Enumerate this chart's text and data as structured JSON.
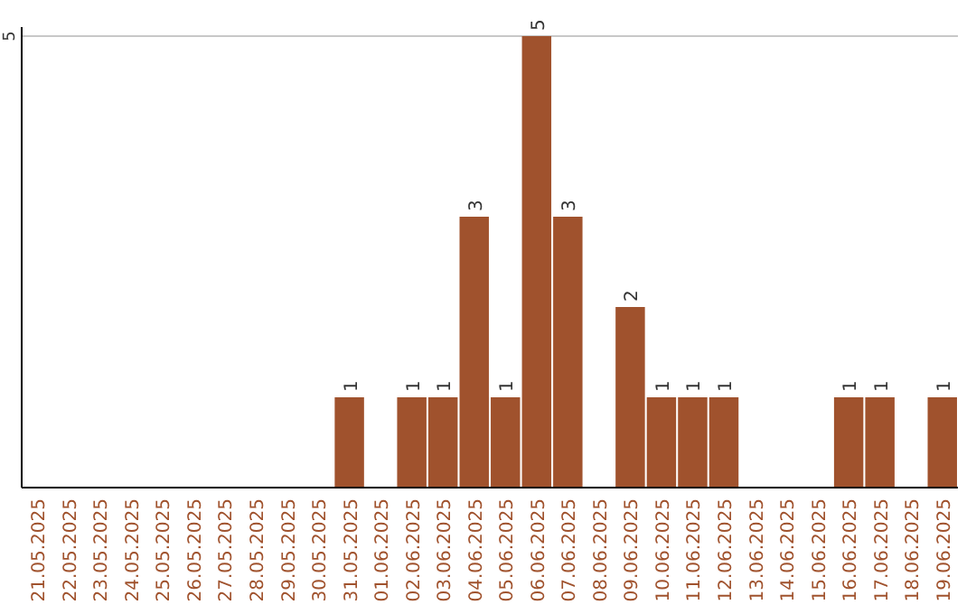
{
  "chart_data": {
    "type": "bar",
    "categories": [
      "21.05.2025",
      "22.05.2025",
      "23.05.2025",
      "24.05.2025",
      "25.05.2025",
      "26.05.2025",
      "27.05.2025",
      "28.05.2025",
      "29.05.2025",
      "30.05.2025",
      "31.05.2025",
      "01.06.2025",
      "02.06.2025",
      "03.06.2025",
      "04.06.2025",
      "05.06.2025",
      "06.06.2025",
      "07.06.2025",
      "08.06.2025",
      "09.06.2025",
      "10.06.2025",
      "11.06.2025",
      "12.06.2025",
      "13.06.2025",
      "14.06.2025",
      "15.06.2025",
      "16.06.2025",
      "17.06.2025",
      "18.06.2025",
      "19.06.2025"
    ],
    "values": [
      0,
      0,
      0,
      0,
      0,
      0,
      0,
      0,
      0,
      0,
      1,
      0,
      1,
      1,
      3,
      1,
      5,
      3,
      0,
      2,
      1,
      1,
      1,
      0,
      0,
      0,
      1,
      1,
      0,
      1
    ],
    "value_labels": [
      null,
      null,
      null,
      null,
      null,
      null,
      null,
      null,
      null,
      null,
      "1",
      null,
      "1",
      "1",
      "3",
      "1",
      "5",
      "3",
      null,
      "2",
      "1",
      "1",
      "1",
      null,
      null,
      null,
      "1",
      "1",
      null,
      "1"
    ],
    "color": "#a0522d",
    "ylim": [
      0,
      5.1
    ],
    "yticks": [
      5
    ],
    "grid": "y"
  }
}
